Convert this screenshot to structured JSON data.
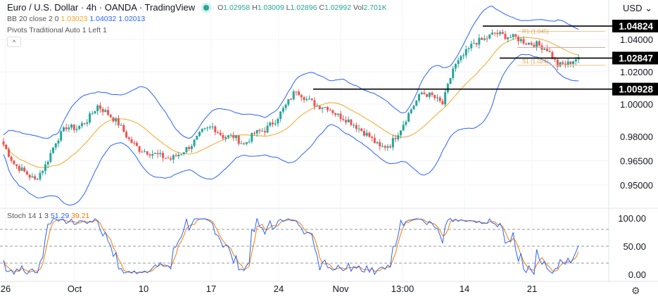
{
  "header": {
    "title": "Euro / U.S. Dollar · 4h · OANDA · TradingView",
    "open_label": "O",
    "open": "1.02958",
    "high_label": "H",
    "high": "1.03009",
    "low_label": "L",
    "low": "1.02896",
    "close_label": "C",
    "close": "1.02992",
    "vol_label": "Vol",
    "vol": "2.701K",
    "bb_label": "BB 20 close 2 0",
    "bb_basis": "1.03023",
    "bb_upper": "1.04032",
    "bb_lower": "1.02013",
    "pivots_label": "Pivots Traditional Auto 1 Left 1",
    "collapse_icon": "^",
    "currency": "USD"
  },
  "price_axis": {
    "labels": [
      "1.04000",
      "1.02000",
      "1.00000",
      "0.98000",
      "0.96500",
      "0.95000"
    ],
    "highlighted": [
      "1.04824",
      "1.02847",
      "1.00928"
    ]
  },
  "pivots": {
    "r1": "R1 (1.045)",
    "s1": "S1 (1.024)"
  },
  "stoch": {
    "label": "Stoch 14 1 3",
    "k": "51.29",
    "d": "39.21",
    "axis": [
      "100.00",
      "50.00",
      "0.00"
    ]
  },
  "time_axis": [
    "26",
    "Oct",
    "10",
    "17",
    "24",
    "Nov",
    "13:00",
    "14",
    "21"
  ],
  "colors": {
    "up": "#26a69a",
    "down": "#ef5350",
    "bb_band": "#2962ff",
    "bb_basis": "#f5a623",
    "stoch_k": "#2962ff",
    "stoch_d": "#f57c00",
    "level": "#000000"
  },
  "chart_data": {
    "type": "candlestick",
    "symbol": "EUR/USD",
    "interval": "4h",
    "close_waypoints": [
      0.975,
      0.963,
      0.958,
      0.953,
      0.962,
      0.977,
      0.986,
      0.985,
      0.99,
      0.999,
      0.994,
      0.988,
      0.978,
      0.972,
      0.97,
      0.968,
      0.966,
      0.97,
      0.975,
      0.983,
      0.986,
      0.98,
      0.98,
      0.975,
      0.982,
      0.984,
      0.99,
      0.999,
      1.009,
      1.003,
      0.999,
      0.998,
      0.993,
      0.99,
      0.985,
      0.98,
      0.973,
      0.975,
      0.985,
      0.997,
      1.007,
      1.005,
      1.0,
      1.022,
      1.03,
      1.038,
      1.04,
      1.044,
      1.042,
      1.041,
      1.038,
      1.037,
      1.034,
      1.024,
      1.025,
      1.029
    ],
    "levels": [
      1.04824,
      1.02847,
      1.00928
    ],
    "pivot_r1": 1.045,
    "pivot_p": 1.035,
    "pivot_s1": 1.024,
    "ylim": [
      0.945,
      1.052
    ],
    "stoch_levels": [
      80,
      50,
      20
    ]
  }
}
